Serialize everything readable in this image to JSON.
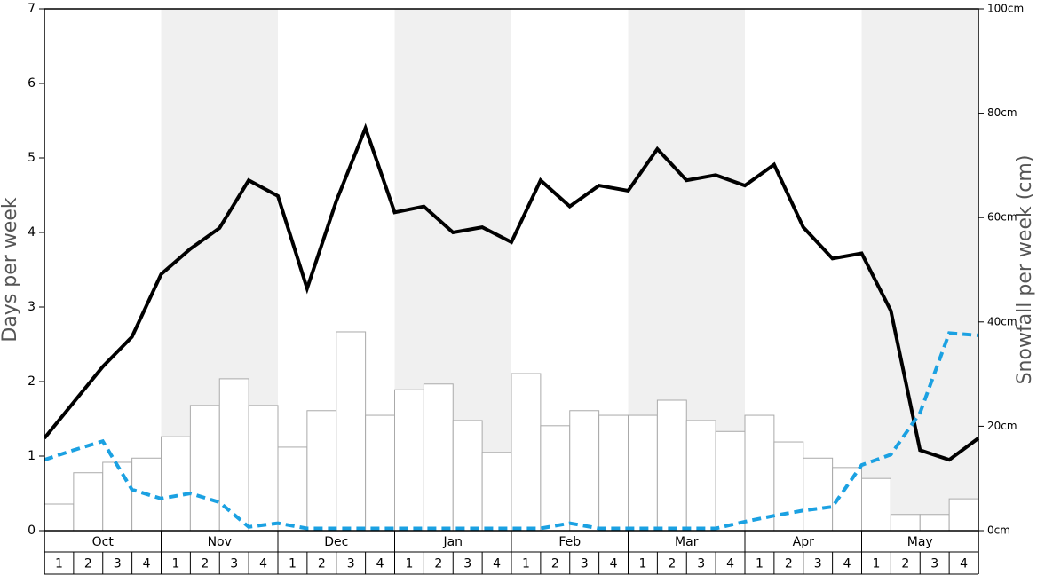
{
  "chart_data": {
    "type": "combo",
    "ylabel": "Days per week",
    "y2label": "Snowfall per week (cm)",
    "ylim": [
      0,
      7
    ],
    "yticks": [
      0,
      1,
      2,
      3,
      4,
      5,
      6,
      7
    ],
    "y2lim": [
      0,
      100
    ],
    "y2ticks": [
      {
        "value": 0,
        "label": "0cm"
      },
      {
        "value": 20,
        "label": "20cm"
      },
      {
        "value": 40,
        "label": "40cm"
      },
      {
        "value": 60,
        "label": "60cm"
      },
      {
        "value": 80,
        "label": "80cm"
      },
      {
        "value": 100,
        "label": "100cm"
      }
    ],
    "months": [
      "Oct",
      "Nov",
      "Dec",
      "Jan",
      "Feb",
      "Mar",
      "Apr",
      "May"
    ],
    "weeks": [
      "1",
      "2",
      "3",
      "4"
    ],
    "series": [
      {
        "type": "bar",
        "axis": "y2",
        "color": "#ffffff",
        "values": [
          5.1,
          11.1,
          13.1,
          13.9,
          18.0,
          24.0,
          29.1,
          24.0,
          16.0,
          23.0,
          38.1,
          22.1,
          27.0,
          28.1,
          21.1,
          15.0,
          30.1,
          20.1,
          23.0,
          22.1,
          22.1,
          25.0,
          21.1,
          19.0,
          22.1,
          17.0,
          13.9,
          12.1,
          10.0,
          3.1,
          3.1,
          6.1
        ]
      },
      {
        "type": "line",
        "color": "#000000",
        "dashed": false,
        "values": [
          1.24,
          1.72,
          2.2,
          2.6,
          3.44,
          3.78,
          4.06,
          4.7,
          4.49,
          3.25,
          4.42,
          5.4,
          4.27,
          4.35,
          4.0,
          4.07,
          3.87,
          4.7,
          4.35,
          4.63,
          4.56,
          5.12,
          4.7,
          4.77,
          4.63,
          4.91,
          4.07,
          3.65,
          3.72,
          2.95,
          1.08,
          0.95,
          1.24
        ]
      },
      {
        "type": "line",
        "color": "#1ba1e2",
        "dashed": true,
        "values": [
          0.95,
          1.08,
          1.2,
          0.55,
          0.43,
          0.5,
          0.38,
          0.05,
          0.1,
          0.03,
          0.03,
          0.03,
          0.03,
          0.03,
          0.03,
          0.03,
          0.03,
          0.03,
          0.1,
          0.03,
          0.03,
          0.03,
          0.03,
          0.03,
          0.12,
          0.2,
          0.27,
          0.32,
          0.88,
          1.02,
          1.58,
          2.65,
          2.62
        ]
      }
    ]
  }
}
